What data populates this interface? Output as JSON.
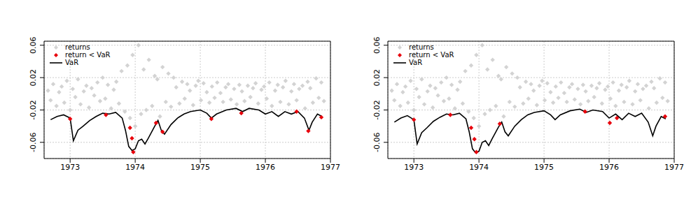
{
  "chart_data": [
    {
      "type": "scatter",
      "grid": true,
      "legend": "top-left",
      "xlim": [
        1972.6,
        1977
      ],
      "xticks": [
        1973,
        1974,
        1975,
        1976,
        1977
      ],
      "ylim": [
        -0.08,
        0.065
      ],
      "yticks": [
        -0.06,
        -0.02,
        0.02,
        0.06
      ],
      "series": [
        {
          "name": "returns",
          "type": "scatter",
          "color": "#d3d3d3",
          "marker": "diamond",
          "x": [
            1972.66,
            1972.7,
            1972.74,
            1972.79,
            1972.83,
            1972.87,
            1972.91,
            1972.95,
            1973.0,
            1973.04,
            1973.08,
            1973.12,
            1973.16,
            1973.21,
            1973.25,
            1973.29,
            1973.33,
            1973.37,
            1973.42,
            1973.46,
            1973.5,
            1973.54,
            1973.58,
            1973.63,
            1973.67,
            1973.71,
            1973.75,
            1973.79,
            1973.84,
            1973.88,
            1973.92,
            1973.96,
            1974.0,
            1974.05,
            1974.09,
            1974.13,
            1974.17,
            1974.21,
            1974.26,
            1974.3,
            1974.34,
            1974.38,
            1974.42,
            1974.47,
            1974.51,
            1974.55,
            1974.59,
            1974.63,
            1974.68,
            1974.72,
            1974.76,
            1974.8,
            1974.84,
            1974.89,
            1974.93,
            1974.97,
            1975.01,
            1975.05,
            1975.1,
            1975.14,
            1975.18,
            1975.22,
            1975.26,
            1975.31,
            1975.35,
            1975.39,
            1975.43,
            1975.47,
            1975.52,
            1975.56,
            1975.6,
            1975.64,
            1975.68,
            1975.73,
            1975.77,
            1975.81,
            1975.85,
            1975.89,
            1975.94,
            1975.98,
            1976.02,
            1976.06,
            1976.1,
            1976.15,
            1976.19,
            1976.23,
            1976.27,
            1976.31,
            1976.36,
            1976.4,
            1976.44,
            1976.48,
            1976.52,
            1976.57,
            1976.61,
            1976.65,
            1976.69,
            1976.73,
            1976.78,
            1976.82,
            1976.86,
            1976.9
          ],
          "values": [
            0.004,
            -0.008,
            0.012,
            -0.015,
            0.002,
            0.009,
            -0.011,
            0.016,
            -0.02,
            0.006,
            -0.004,
            0.018,
            -0.013,
            0.003,
            0.01,
            -0.017,
            0.007,
            -0.002,
            0.014,
            -0.009,
            0.02,
            -0.006,
            0.011,
            -0.018,
            0.005,
            0.015,
            -0.012,
            0.028,
            -0.022,
            0.035,
            -0.03,
            0.048,
            -0.04,
            0.06,
            -0.025,
            0.03,
            -0.02,
            0.042,
            -0.015,
            0.022,
            0.018,
            -0.028,
            0.033,
            -0.01,
            0.025,
            -0.016,
            0.02,
            0.008,
            -0.012,
            0.015,
            -0.006,
            0.012,
            0.004,
            -0.014,
            0.01,
            0.016,
            -0.008,
            0.013,
            0.002,
            -0.011,
            0.009,
            -0.005,
            0.014,
            0.001,
            -0.01,
            0.008,
            0.012,
            -0.007,
            0.006,
            -0.013,
            0.011,
            0.003,
            -0.009,
            0.01,
            -0.004,
            0.007,
            0.013,
            -0.012,
            0.005,
            0.009,
            -0.006,
            0.014,
            -0.015,
            0.004,
            0.011,
            -0.01,
            0.008,
            0.016,
            -0.013,
            0.003,
            0.012,
            -0.008,
            0.006,
            0.01,
            -0.018,
            0.015,
            0.007,
            -0.011,
            0.019,
            -0.005,
            0.014,
            -0.009
          ]
        },
        {
          "name": "return < VaR",
          "type": "scatter",
          "color": "#e8000b",
          "marker": "diamond",
          "x": [
            1973.0,
            1973.55,
            1973.92,
            1973.95,
            1973.97,
            1974.32,
            1974.42,
            1975.17,
            1975.63,
            1976.48,
            1976.66,
            1976.86
          ],
          "values": [
            -0.031,
            -0.026,
            -0.042,
            -0.055,
            -0.072,
            -0.036,
            -0.047,
            -0.031,
            -0.024,
            -0.022,
            -0.046,
            -0.029
          ]
        },
        {
          "name": "VaR",
          "type": "line",
          "color": "#000000",
          "line_style": "solid",
          "x": [
            1972.7,
            1972.8,
            1972.9,
            1973.0,
            1973.05,
            1973.12,
            1973.2,
            1973.3,
            1973.4,
            1973.5,
            1973.6,
            1973.7,
            1973.8,
            1973.85,
            1973.9,
            1973.95,
            1974.0,
            1974.05,
            1974.1,
            1974.15,
            1974.2,
            1974.3,
            1974.35,
            1974.4,
            1974.45,
            1974.55,
            1974.65,
            1974.75,
            1974.85,
            1975.0,
            1975.1,
            1975.17,
            1975.25,
            1975.4,
            1975.55,
            1975.65,
            1975.75,
            1975.9,
            1976.0,
            1976.1,
            1976.2,
            1976.3,
            1976.4,
            1976.5,
            1976.6,
            1976.67,
            1976.72,
            1976.8,
            1976.87
          ],
          "values": [
            -0.032,
            -0.028,
            -0.026,
            -0.03,
            -0.058,
            -0.045,
            -0.04,
            -0.033,
            -0.028,
            -0.024,
            -0.025,
            -0.023,
            -0.03,
            -0.045,
            -0.065,
            -0.07,
            -0.068,
            -0.058,
            -0.056,
            -0.062,
            -0.055,
            -0.04,
            -0.033,
            -0.045,
            -0.05,
            -0.038,
            -0.03,
            -0.025,
            -0.022,
            -0.02,
            -0.024,
            -0.03,
            -0.025,
            -0.02,
            -0.018,
            -0.022,
            -0.018,
            -0.02,
            -0.025,
            -0.022,
            -0.028,
            -0.022,
            -0.025,
            -0.022,
            -0.03,
            -0.045,
            -0.035,
            -0.025,
            -0.028
          ]
        }
      ]
    },
    {
      "type": "scatter",
      "grid": true,
      "legend": "top-left",
      "xlim": [
        1972.6,
        1977
      ],
      "xticks": [
        1973,
        1974,
        1975,
        1976,
        1977
      ],
      "ylim": [
        -0.08,
        0.065
      ],
      "yticks": [
        -0.06,
        -0.02,
        0.02,
        0.06
      ],
      "series": [
        {
          "name": "returns",
          "type": "scatter",
          "color": "#d3d3d3",
          "marker": "diamond",
          "x": [
            1972.66,
            1972.7,
            1972.74,
            1972.79,
            1972.83,
            1972.87,
            1972.91,
            1972.95,
            1973.0,
            1973.04,
            1973.08,
            1973.12,
            1973.16,
            1973.21,
            1973.25,
            1973.29,
            1973.33,
            1973.37,
            1973.42,
            1973.46,
            1973.5,
            1973.54,
            1973.58,
            1973.63,
            1973.67,
            1973.71,
            1973.75,
            1973.79,
            1973.84,
            1973.88,
            1973.92,
            1973.96,
            1974.0,
            1974.05,
            1974.09,
            1974.13,
            1974.17,
            1974.21,
            1974.26,
            1974.3,
            1974.34,
            1974.38,
            1974.42,
            1974.47,
            1974.51,
            1974.55,
            1974.59,
            1974.63,
            1974.68,
            1974.72,
            1974.76,
            1974.8,
            1974.84,
            1974.89,
            1974.93,
            1974.97,
            1975.01,
            1975.05,
            1975.1,
            1975.14,
            1975.18,
            1975.22,
            1975.26,
            1975.31,
            1975.35,
            1975.39,
            1975.43,
            1975.47,
            1975.52,
            1975.56,
            1975.6,
            1975.64,
            1975.68,
            1975.73,
            1975.77,
            1975.81,
            1975.85,
            1975.89,
            1975.94,
            1975.98,
            1976.02,
            1976.06,
            1976.1,
            1976.15,
            1976.19,
            1976.23,
            1976.27,
            1976.31,
            1976.36,
            1976.4,
            1976.44,
            1976.48,
            1976.52,
            1976.57,
            1976.61,
            1976.65,
            1976.69,
            1976.73,
            1976.78,
            1976.82,
            1976.86,
            1976.9
          ],
          "values": [
            0.004,
            -0.008,
            0.012,
            -0.015,
            0.002,
            0.009,
            -0.011,
            0.016,
            -0.02,
            0.006,
            -0.004,
            0.018,
            -0.013,
            0.003,
            0.01,
            -0.017,
            0.007,
            -0.002,
            0.014,
            -0.009,
            0.02,
            -0.006,
            0.011,
            -0.018,
            0.005,
            0.015,
            -0.012,
            0.028,
            -0.022,
            0.035,
            -0.03,
            0.048,
            -0.04,
            0.06,
            -0.025,
            0.03,
            -0.02,
            0.042,
            -0.015,
            0.022,
            0.018,
            -0.028,
            0.033,
            -0.01,
            0.025,
            -0.016,
            0.02,
            0.008,
            -0.012,
            0.015,
            -0.006,
            0.012,
            0.004,
            -0.014,
            0.01,
            0.016,
            -0.008,
            0.013,
            0.002,
            -0.011,
            0.009,
            -0.005,
            0.014,
            0.001,
            -0.01,
            0.008,
            0.012,
            -0.007,
            0.006,
            -0.013,
            0.011,
            0.003,
            -0.009,
            0.01,
            -0.004,
            0.007,
            0.013,
            -0.012,
            0.005,
            0.009,
            -0.006,
            0.014,
            -0.015,
            0.004,
            0.011,
            -0.01,
            0.008,
            0.016,
            -0.013,
            0.003,
            0.012,
            -0.008,
            0.006,
            0.01,
            -0.018,
            0.015,
            0.007,
            -0.011,
            0.019,
            -0.005,
            0.014,
            -0.009
          ]
        },
        {
          "name": "return < VaR",
          "type": "scatter",
          "color": "#e8000b",
          "marker": "diamond",
          "x": [
            1973.0,
            1973.56,
            1973.88,
            1973.93,
            1973.96,
            1974.32,
            1975.63,
            1976.01,
            1976.12,
            1976.86
          ],
          "values": [
            -0.032,
            -0.026,
            -0.042,
            -0.056,
            -0.072,
            -0.037,
            -0.022,
            -0.036,
            -0.03,
            -0.028
          ]
        },
        {
          "name": "VaR",
          "type": "line",
          "color": "#000000",
          "line_style": "solid",
          "x": [
            1972.7,
            1972.8,
            1972.9,
            1973.0,
            1973.05,
            1973.12,
            1973.2,
            1973.3,
            1973.4,
            1973.5,
            1973.6,
            1973.7,
            1973.8,
            1973.85,
            1973.9,
            1973.95,
            1974.0,
            1974.05,
            1974.1,
            1974.15,
            1974.2,
            1974.3,
            1974.35,
            1974.4,
            1974.45,
            1974.55,
            1974.65,
            1974.75,
            1974.85,
            1975.0,
            1975.1,
            1975.17,
            1975.25,
            1975.4,
            1975.55,
            1975.65,
            1975.75,
            1975.9,
            1976.0,
            1976.1,
            1976.2,
            1976.3,
            1976.4,
            1976.5,
            1976.6,
            1976.67,
            1976.72,
            1976.8,
            1976.87
          ],
          "values": [
            -0.035,
            -0.03,
            -0.027,
            -0.032,
            -0.062,
            -0.048,
            -0.042,
            -0.034,
            -0.029,
            -0.025,
            -0.026,
            -0.024,
            -0.031,
            -0.047,
            -0.068,
            -0.073,
            -0.071,
            -0.06,
            -0.058,
            -0.064,
            -0.056,
            -0.041,
            -0.035,
            -0.047,
            -0.052,
            -0.04,
            -0.032,
            -0.026,
            -0.023,
            -0.021,
            -0.026,
            -0.032,
            -0.026,
            -0.021,
            -0.019,
            -0.023,
            -0.02,
            -0.022,
            -0.03,
            -0.025,
            -0.032,
            -0.024,
            -0.028,
            -0.024,
            -0.035,
            -0.052,
            -0.04,
            -0.028,
            -0.031
          ]
        }
      ]
    }
  ]
}
